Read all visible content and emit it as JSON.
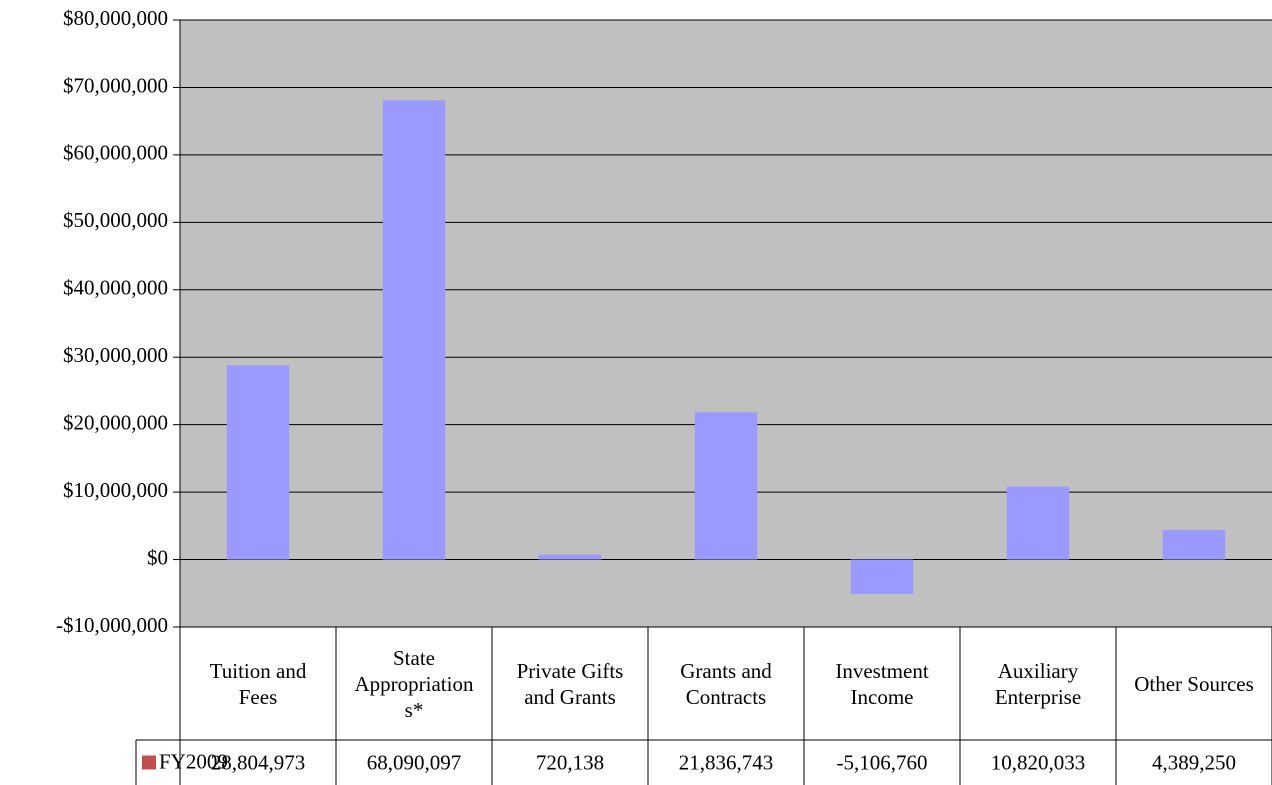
{
  "chart_data": {
    "type": "bar",
    "categories": [
      "Tuition and Fees",
      "State Appropriations*",
      "Private Gifts and Grants",
      "Grants and Contracts",
      "Investment Income",
      "Auxiliary Enterprise",
      "Other Sources"
    ],
    "series": [
      {
        "name": "FY2009",
        "color": "#9999ff",
        "legend_key_color": "#c0504d",
        "values": [
          28804973,
          68090097,
          720138,
          21836743,
          -5106760,
          10820033,
          4389250
        ],
        "value_labels": [
          "28,804,973",
          "68,090,097",
          "720,138",
          "21,836,743",
          "-5,106,760",
          "10,820,033",
          "4,389,250"
        ]
      }
    ],
    "ylim": [
      -10000000,
      80000000
    ],
    "yticks": [
      {
        "value": -10000000,
        "label": "-$10,000,000"
      },
      {
        "value": 0,
        "label": "$0"
      },
      {
        "value": 10000000,
        "label": "$10,000,000"
      },
      {
        "value": 20000000,
        "label": "$20,000,000"
      },
      {
        "value": 30000000,
        "label": "$30,000,000"
      },
      {
        "value": 40000000,
        "label": "$40,000,000"
      },
      {
        "value": 50000000,
        "label": "$50,000,000"
      },
      {
        "value": 60000000,
        "label": "$60,000,000"
      },
      {
        "value": 70000000,
        "label": "$70,000,000"
      },
      {
        "value": 80000000,
        "label": "$80,000,000"
      }
    ],
    "grid": true,
    "plot_background": "#c0c0c0",
    "data_table": true
  }
}
